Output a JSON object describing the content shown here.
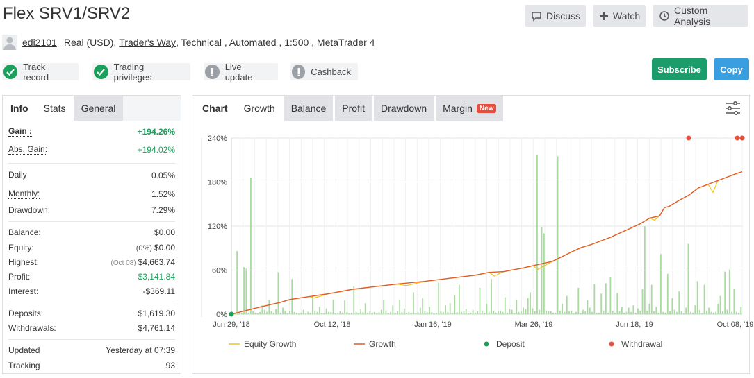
{
  "header": {
    "title": "Flex SRV1/SRV2",
    "discuss_label": "Discuss",
    "watch_label": "Watch",
    "custom_analysis_label": "Custom Analysis"
  },
  "meta": {
    "username": "edi2101",
    "account_type": "Real (USD),",
    "broker": "Trader's Way",
    "details": ", Technical , Automated , 1:500 , MetaTrader 4"
  },
  "badges": {
    "track_record": "Track record",
    "trading_privileges": "Trading privileges",
    "live_update": "Live update",
    "cashback": "Cashback"
  },
  "actions": {
    "subscribe_label": "Subscribe",
    "copy_label": "Copy",
    "subscribe_color": "#1b9c6b",
    "copy_color": "#3a9fe0"
  },
  "left_tabs": {
    "info": "Info",
    "stats": "Stats",
    "general": "General"
  },
  "stats": {
    "gain_label": "Gain :",
    "gain_value": "+194.26%",
    "abs_gain_label": "Abs. Gain:",
    "abs_gain_value": "+194.02%",
    "daily_label": "Daily",
    "daily_value": "0.05%",
    "monthly_label": "Monthly:",
    "monthly_value": "1.52%",
    "drawdown_label": "Drawdown:",
    "drawdown_value": "7.29%",
    "balance_label": "Balance:",
    "balance_value": "$0.00",
    "equity_label": "Equity:",
    "equity_note": "(0%)",
    "equity_value": "$0.00",
    "highest_label": "Highest:",
    "highest_note": "(Oct 08)",
    "highest_value": "$4,663.74",
    "profit_label": "Profit:",
    "profit_value": "$3,141.84",
    "interest_label": "Interest:",
    "interest_value": "-$369.11",
    "deposits_label": "Deposits:",
    "deposits_value": "$1,619.30",
    "withdrawals_label": "Withdrawals:",
    "withdrawals_value": "$4,761.14",
    "updated_label": "Updated",
    "updated_value": "Yesterday at 07:39",
    "tracking_label": "Tracking",
    "tracking_value": "93"
  },
  "chart_tabs": {
    "chart": "Chart",
    "growth": "Growth",
    "balance": "Balance",
    "profit": "Profit",
    "drawdown": "Drawdown",
    "margin": "Margin",
    "margin_badge": "New"
  },
  "chart_data": {
    "type": "line",
    "ylim": [
      0,
      240
    ],
    "y_ticks": [
      0,
      60,
      120,
      180,
      240
    ],
    "y_tick_labels": [
      "0%",
      "60%",
      "120%",
      "180%",
      "240%"
    ],
    "x_ticks": [
      "Jun 29, '18",
      "Oct 12, '18",
      "Jan 16, '19",
      "Mar 26, '19",
      "Jun 18, '19",
      "Oct 08, '19"
    ],
    "grid": true,
    "legend_position": "bottom",
    "series": [
      {
        "name": "Equity Growth",
        "color": "#f0c419",
        "points": [
          [
            0,
            0
          ],
          [
            0.03,
            5
          ],
          [
            0.06,
            10
          ],
          [
            0.1,
            16
          ],
          [
            0.12,
            20
          ],
          [
            0.16,
            24
          ],
          [
            0.17,
            22
          ],
          [
            0.2,
            28
          ],
          [
            0.25,
            34
          ],
          [
            0.3,
            38
          ],
          [
            0.34,
            41
          ],
          [
            0.36,
            39
          ],
          [
            0.4,
            45
          ],
          [
            0.45,
            49
          ],
          [
            0.5,
            53
          ],
          [
            0.53,
            57
          ],
          [
            0.54,
            52
          ],
          [
            0.56,
            58
          ],
          [
            0.6,
            63
          ],
          [
            0.62,
            66
          ],
          [
            0.63,
            61
          ],
          [
            0.66,
            72
          ],
          [
            0.7,
            85
          ],
          [
            0.72,
            91
          ],
          [
            0.74,
            95
          ],
          [
            0.78,
            105
          ],
          [
            0.82,
            117
          ],
          [
            0.84,
            123
          ],
          [
            0.86,
            131
          ],
          [
            0.87,
            128
          ],
          [
            0.88,
            134
          ],
          [
            0.89,
            145
          ],
          [
            0.9,
            147
          ],
          [
            0.92,
            155
          ],
          [
            0.94,
            162
          ],
          [
            0.96,
            172
          ],
          [
            0.98,
            177
          ],
          [
            0.99,
            166
          ],
          [
            1,
            182
          ],
          [
            1.02,
            187
          ],
          [
            1.04,
            192
          ],
          [
            1.05,
            194
          ]
        ]
      },
      {
        "name": "Growth",
        "color": "#e35b26",
        "points": [
          [
            0,
            0
          ],
          [
            0.03,
            5
          ],
          [
            0.06,
            10
          ],
          [
            0.1,
            16
          ],
          [
            0.12,
            20
          ],
          [
            0.16,
            24
          ],
          [
            0.2,
            28
          ],
          [
            0.25,
            34
          ],
          [
            0.3,
            38
          ],
          [
            0.34,
            41
          ],
          [
            0.4,
            45
          ],
          [
            0.45,
            49
          ],
          [
            0.5,
            53
          ],
          [
            0.53,
            57
          ],
          [
            0.56,
            58
          ],
          [
            0.6,
            63
          ],
          [
            0.62,
            66
          ],
          [
            0.66,
            72
          ],
          [
            0.7,
            85
          ],
          [
            0.72,
            91
          ],
          [
            0.74,
            95
          ],
          [
            0.78,
            105
          ],
          [
            0.82,
            117
          ],
          [
            0.84,
            123
          ],
          [
            0.86,
            131
          ],
          [
            0.88,
            134
          ],
          [
            0.89,
            145
          ],
          [
            0.9,
            147
          ],
          [
            0.92,
            155
          ],
          [
            0.94,
            162
          ],
          [
            0.96,
            172
          ],
          [
            0.98,
            177
          ],
          [
            1,
            182
          ],
          [
            1.02,
            187
          ],
          [
            1.04,
            192
          ],
          [
            1.05,
            194
          ]
        ]
      }
    ],
    "deposit_points": [
      [
        0,
        0
      ]
    ],
    "withdrawal_points": [
      [
        0.94,
        240
      ],
      [
        1.04,
        240
      ],
      [
        1.05,
        240
      ]
    ],
    "legend": [
      {
        "label": "Equity Growth",
        "kind": "line",
        "color": "#f0c419"
      },
      {
        "label": "Growth",
        "kind": "line",
        "color": "#e35b26"
      },
      {
        "label": "Deposit",
        "kind": "dot",
        "color": "#1aa05a"
      },
      {
        "label": "Withdrawal",
        "kind": "dot",
        "color": "#e74c3c"
      }
    ],
    "bars_color": "#a9dba0",
    "bar_heights_percent": [
      1.5,
      2,
      86,
      3,
      2,
      64,
      62,
      2,
      186,
      4,
      2,
      1,
      3,
      12,
      6,
      3,
      20,
      4,
      2,
      7,
      57,
      2,
      9,
      5,
      1,
      4,
      48,
      3,
      2,
      1,
      2,
      6,
      1,
      3,
      2,
      26,
      5,
      3,
      10,
      2,
      1,
      8,
      3,
      3,
      20,
      1,
      2,
      4,
      2,
      19,
      3,
      1,
      2,
      38,
      3,
      1,
      7,
      3,
      15,
      2,
      4,
      2,
      3,
      1,
      3,
      6,
      20,
      5,
      2,
      3,
      12,
      2,
      4,
      20,
      3,
      8,
      2,
      3,
      2,
      30,
      1,
      3,
      9,
      22,
      4,
      3,
      10,
      3,
      1,
      2,
      43,
      4,
      3,
      12,
      3,
      15,
      1,
      26,
      3,
      40,
      3,
      4,
      7,
      1,
      2,
      6,
      2,
      4,
      36,
      5,
      2,
      14,
      3,
      48,
      5,
      2,
      4,
      5,
      3,
      23,
      2,
      7,
      6,
      1,
      20,
      3,
      4,
      9,
      7,
      22,
      30,
      8,
      4,
      217,
      6,
      118,
      110,
      5,
      4,
      4,
      2,
      2,
      215,
      5,
      14,
      3,
      25,
      4,
      5,
      1,
      3,
      36,
      1,
      6,
      4,
      19,
      9,
      3,
      41,
      2,
      2,
      28,
      5,
      42,
      2,
      50,
      5,
      2,
      29,
      4,
      10,
      2,
      3,
      9,
      3,
      12,
      2,
      8,
      5,
      34,
      120,
      5,
      14,
      40,
      4,
      10,
      2,
      82,
      3,
      2,
      55,
      4,
      22,
      6,
      3,
      31,
      4,
      1,
      9,
      96,
      3,
      2,
      12,
      45,
      6,
      1,
      40,
      5,
      9,
      3,
      2,
      3,
      14,
      25,
      4,
      58,
      6,
      61,
      3,
      35,
      3,
      2,
      10
    ]
  }
}
